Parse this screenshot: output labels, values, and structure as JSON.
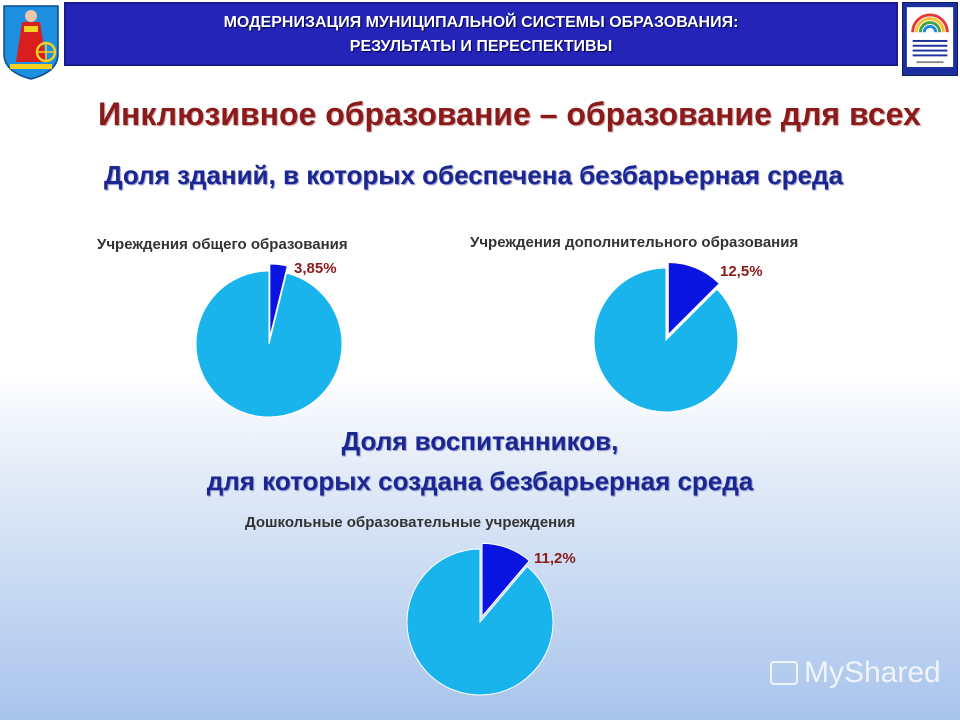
{
  "header": {
    "line1": "МОДЕРНИЗАЦИЯ МУНИЦИПАЛЬНОЙ СИСТЕМЫ ОБРАЗОВАНИЯ:",
    "line2": "РЕЗУЛЬТАТЫ И ПЕРЕСПЕКТИВЫ"
  },
  "emblem": {
    "icon": "city-coat-of-arms-icon"
  },
  "logo": {
    "icon": "education-department-logo-icon",
    "text": "УПРАВЛЕНИЕ ОБРАЗОВАНИЯ АДМИНИСТРАЦИИ ГОРОДА ИВАНОВА"
  },
  "main_title": "Инклюзивное образование – образование для всех",
  "subtitle_buildings": "Доля зданий, в которых обеспечена безбарьерная среда",
  "subtitle_pupils": {
    "line1": "Доля воспитанников,",
    "line2": "для которых создана безбарьерная среда"
  },
  "colors": {
    "highlight": "#0a14e0",
    "rest": "#1ab4ec",
    "title_red": "#8b1a1a",
    "title_blue": "#1b2690",
    "header_bg": "#2424b8"
  },
  "chart_data": [
    {
      "type": "pie",
      "title": "Учреждения общего образования",
      "slices": [
        {
          "value": 3.85,
          "label": "3,85%",
          "color": "#0a14e0"
        },
        {
          "value": 96.15,
          "label": "",
          "color": "#1ab4ec"
        }
      ]
    },
    {
      "type": "pie",
      "title": "Учреждения дополнительного образования",
      "slices": [
        {
          "value": 12.5,
          "label": "12,5%",
          "color": "#0a14e0"
        },
        {
          "value": 87.5,
          "label": "",
          "color": "#1ab4ec"
        }
      ]
    },
    {
      "type": "pie",
      "title": "Дошкольные образовательные учреждения",
      "slices": [
        {
          "value": 11.2,
          "label": "11,2%",
          "color": "#0a14e0"
        },
        {
          "value": 88.8,
          "label": "",
          "color": "#1ab4ec"
        }
      ]
    }
  ],
  "watermark": "MyShared"
}
